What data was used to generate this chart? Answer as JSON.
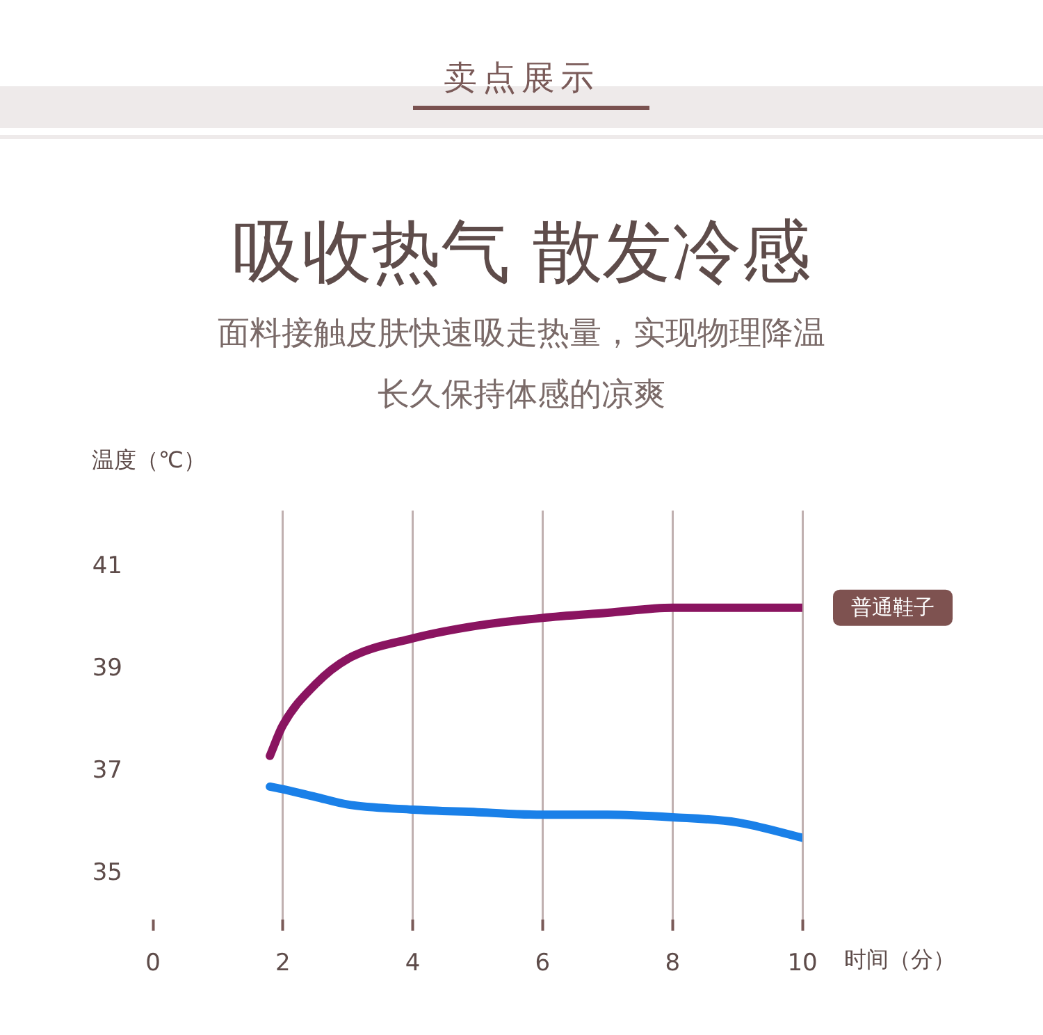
{
  "chart_data": {
    "type": "line",
    "title": "吸收热气 散发冷感",
    "subtitle": "面料接触皮肤快速吸走热量，实现物理降温长久保持体感的凉爽",
    "annotations": [
      "卖点展示"
    ],
    "xlabel": "时间（分）",
    "ylabel": "温度（℃）",
    "x": [
      1.8,
      2,
      2.5,
      3,
      4,
      5,
      6,
      7,
      8,
      9,
      10
    ],
    "series": [
      {
        "name": "普通鞋子",
        "color": "#8a1460",
        "values": [
          37.3,
          37.9,
          38.7,
          39.2,
          39.6,
          39.85,
          40.0,
          40.1,
          40.2,
          40.2,
          40.2
        ]
      },
      {
        "color": "#1a80e8",
        "values": [
          36.7,
          36.65,
          36.5,
          36.35,
          36.25,
          36.2,
          36.15,
          36.15,
          36.1,
          36.0,
          35.7
        ]
      }
    ],
    "xlim": [
      0,
      10
    ],
    "ylim": [
      34.1,
      42.1
    ],
    "xticks": [
      0,
      2,
      4,
      6,
      8,
      10
    ],
    "yticks": [
      35,
      37,
      39,
      41
    ],
    "grid": "x",
    "marker": "none"
  }
}
